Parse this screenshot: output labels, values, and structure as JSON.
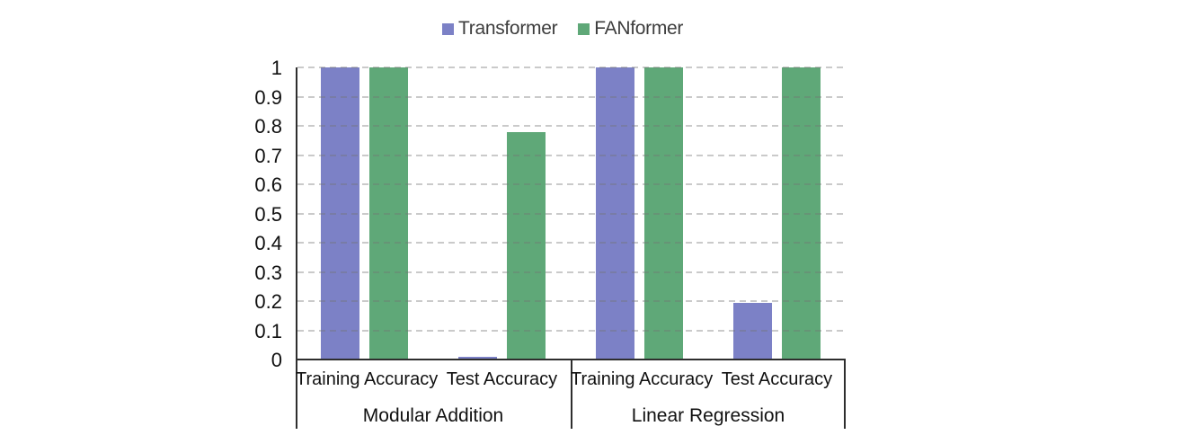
{
  "chart_data": {
    "type": "bar",
    "title": "",
    "groups": [
      {
        "label": "Modular Addition",
        "categories": [
          "Training Accuracy",
          "Test Accuracy"
        ]
      },
      {
        "label": "Linear Regression",
        "categories": [
          "Training Accuracy",
          "Test Accuracy"
        ]
      }
    ],
    "series": [
      {
        "name": "Transformer",
        "color": "#7C81C6",
        "values": [
          1.0,
          0.01,
          1.0,
          0.195
        ]
      },
      {
        "name": "FANformer",
        "color": "#5FA878",
        "values": [
          1.0,
          0.78,
          1.0,
          1.0
        ]
      }
    ],
    "ylim": [
      0,
      1
    ],
    "ytick_labels": [
      "0",
      "0.1",
      "0.2",
      "0.3",
      "0.4",
      "0.5",
      "0.6",
      "0.7",
      "0.8",
      "0.9",
      "1"
    ],
    "grid": {
      "horizontal": true,
      "style": "dashed",
      "color": "#c9c9c9"
    },
    "legend": {
      "position": "top-center"
    },
    "colors": {
      "axis": "#2e2e2e",
      "tick_text": "#111111",
      "legend_text": "#3d3d3d"
    }
  }
}
